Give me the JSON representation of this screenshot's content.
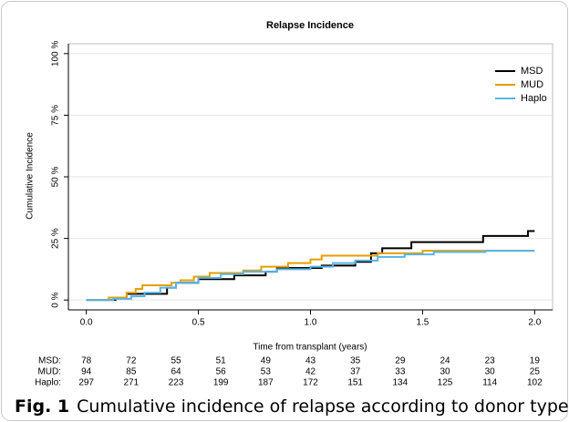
{
  "chart_data": {
    "type": "step",
    "title": "Relapse Incidence",
    "x_label": "Time from transplant (years)",
    "y_label": "Cumulative Incidence",
    "xlim": [
      -0.08,
      2.08
    ],
    "ylim": [
      -4,
      104
    ],
    "xticks": [
      {
        "value": 0,
        "label": "0.0"
      },
      0.5,
      {
        "value": 1,
        "label": "1.0"
      },
      1.5,
      {
        "value": 2,
        "label": "2.0"
      }
    ],
    "yticks": [
      {
        "value": 0,
        "label": "0 %"
      },
      {
        "value": 25,
        "label": "25 %"
      },
      {
        "value": 50,
        "label": "50 %"
      },
      {
        "value": 75,
        "label": "75 %"
      },
      {
        "value": 100,
        "label": "100 %"
      }
    ],
    "grid": true,
    "legend": "top-right",
    "series": [
      {
        "name": "MSD",
        "color": "#000000",
        "x": [
          0,
          0.13,
          0.13,
          0.18,
          0.18,
          0.36,
          0.36,
          0.4,
          0.4,
          0.5,
          0.5,
          0.66,
          0.66,
          0.8,
          0.8,
          0.85,
          0.85,
          1.05,
          1.05,
          1.2,
          1.2,
          1.27,
          1.27,
          1.32,
          1.32,
          1.45,
          1.45,
          1.77,
          1.77,
          1.97,
          1.97,
          2.0
        ],
        "values": [
          0,
          0,
          1,
          1,
          2.5,
          2.5,
          5,
          5,
          7,
          7,
          8.5,
          8.5,
          10,
          10,
          11.5,
          11.5,
          13,
          13,
          14,
          14,
          15.5,
          15.5,
          19,
          19,
          21,
          21,
          23.5,
          23.5,
          26,
          26,
          28,
          28
        ]
      },
      {
        "name": "MUD",
        "color": "#e69f00",
        "x": [
          0,
          0.1,
          0.1,
          0.18,
          0.18,
          0.22,
          0.22,
          0.25,
          0.25,
          0.38,
          0.38,
          0.42,
          0.42,
          0.48,
          0.48,
          0.55,
          0.55,
          0.7,
          0.7,
          0.78,
          0.78,
          0.9,
          0.9,
          1.0,
          1.0,
          1.05,
          1.05,
          1.3,
          1.3,
          1.5,
          1.5,
          2.0
        ],
        "values": [
          0,
          0,
          1,
          1,
          3,
          3,
          4.5,
          4.5,
          6,
          6,
          7,
          7,
          8,
          8,
          9.5,
          9.5,
          11,
          11,
          12,
          12,
          13.5,
          13.5,
          15,
          15,
          16.5,
          16.5,
          18,
          18,
          19,
          19,
          20,
          20
        ]
      },
      {
        "name": "Haplo",
        "color": "#56b4e9",
        "x": [
          0,
          0.12,
          0.12,
          0.2,
          0.2,
          0.26,
          0.26,
          0.33,
          0.33,
          0.4,
          0.4,
          0.5,
          0.5,
          0.6,
          0.6,
          0.7,
          0.7,
          0.85,
          0.85,
          1.0,
          1.0,
          1.1,
          1.1,
          1.2,
          1.2,
          1.3,
          1.3,
          1.42,
          1.42,
          1.55,
          1.55,
          1.78,
          1.78,
          2.0
        ],
        "values": [
          0,
          0,
          0.5,
          0.5,
          1.5,
          1.5,
          3,
          3,
          5,
          5,
          7,
          7,
          9,
          9,
          10.5,
          10.5,
          11.5,
          11.5,
          12.5,
          12.5,
          13.5,
          13.5,
          15,
          15,
          16,
          16,
          17.5,
          17.5,
          18.5,
          18.5,
          19.5,
          19.5,
          20,
          20
        ]
      }
    ],
    "risk_table": {
      "times": [
        0,
        0.2,
        0.4,
        0.6,
        0.8,
        1.0,
        1.2,
        1.4,
        1.6,
        1.8,
        2.0
      ],
      "rows": [
        {
          "name": "MSD:",
          "color": "#000000",
          "values": [
            78,
            72,
            55,
            51,
            49,
            43,
            35,
            29,
            24,
            23,
            19
          ]
        },
        {
          "name": "MUD:",
          "color": "#e69f00",
          "values": [
            94,
            85,
            64,
            56,
            53,
            42,
            37,
            33,
            30,
            30,
            25
          ]
        },
        {
          "name": "Haplo:",
          "color": "#56b4e9",
          "values": [
            297,
            271,
            223,
            199,
            187,
            172,
            151,
            134,
            125,
            114,
            102
          ]
        }
      ]
    },
    "caption": {
      "label": "Fig. 1",
      "text": "Cumulative incidence of relapse according to donor type"
    }
  }
}
